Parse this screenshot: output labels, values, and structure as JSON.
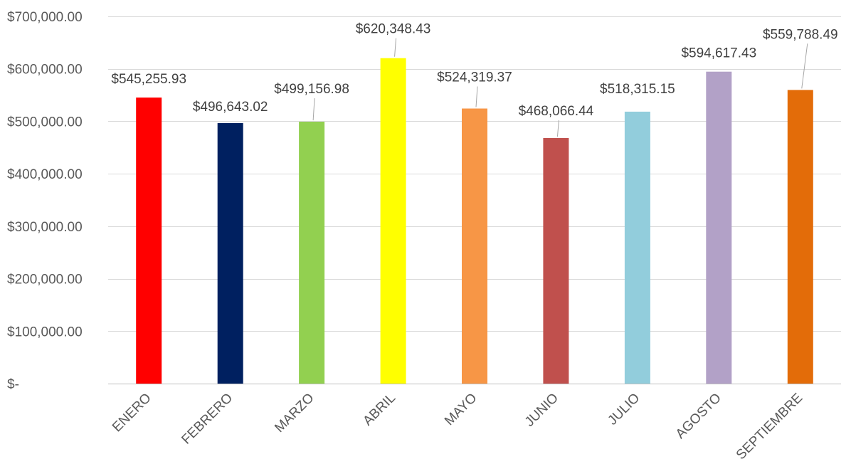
{
  "chart_data": {
    "type": "bar",
    "categories": [
      "ENERO",
      "FEBRERO",
      "MARZO",
      "ABRIL",
      "MAYO",
      "JUNIO",
      "JULIO",
      "AGOSTO",
      "SEPTIEMBRE"
    ],
    "values": [
      545255.93,
      496643.02,
      499156.98,
      620348.43,
      524319.37,
      468066.44,
      518315.15,
      594617.43,
      559788.49
    ],
    "data_labels": [
      "$545,255.93",
      "$496,643.02",
      "$499,156.98",
      "$620,348.43",
      "$524,319.37",
      "$468,066.44",
      "$518,315.15",
      "$594,617.43",
      "$559,788.49"
    ],
    "colors": [
      "#ff0000",
      "#002060",
      "#92d050",
      "#ffff00",
      "#f79646",
      "#c0504d",
      "#92cddc",
      "#b2a1c7",
      "#e36c09"
    ],
    "ylim": [
      0,
      700000
    ],
    "yticks": [
      {
        "value": 0,
        "label": "$-"
      },
      {
        "value": 100000,
        "label": "$100,000.00"
      },
      {
        "value": 200000,
        "label": "$200,000.00"
      },
      {
        "value": 300000,
        "label": "$300,000.00"
      },
      {
        "value": 400000,
        "label": "$400,000.00"
      },
      {
        "value": 500000,
        "label": "$500,000.00"
      },
      {
        "value": 600000,
        "label": "$600,000.00"
      },
      {
        "value": 700000,
        "label": "$700,000.00"
      }
    ],
    "title": "",
    "xlabel": "",
    "ylabel": "",
    "grid": true,
    "legend": "none"
  }
}
